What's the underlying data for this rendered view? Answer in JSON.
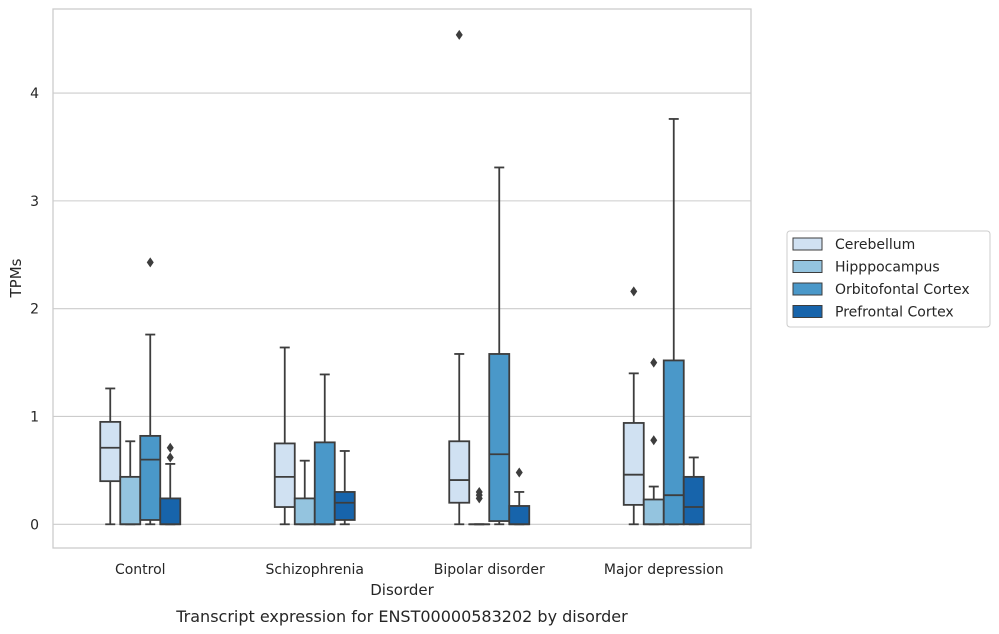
{
  "chart_data": {
    "type": "box",
    "title": "",
    "caption": "Transcript expression for ENST00000583202 by disorder",
    "xlabel": "Disorder",
    "ylabel": "TPMs",
    "ylim": [
      -0.22,
      4.78
    ],
    "yticks": [
      0,
      1,
      2,
      3,
      4
    ],
    "grid": "horizontal",
    "legend_position": "right",
    "categories": [
      "Control",
      "Schizophrenia",
      "Bipolar disorder",
      "Major depression"
    ],
    "series": [
      {
        "name": "Cerebellum",
        "color": "#d0e1f2",
        "boxes": [
          {
            "whislo": 0.0,
            "q1": 0.4,
            "med": 0.71,
            "q3": 0.95,
            "whishi": 1.26,
            "fliers": []
          },
          {
            "whislo": 0.0,
            "q1": 0.16,
            "med": 0.44,
            "q3": 0.75,
            "whishi": 1.64,
            "fliers": []
          },
          {
            "whislo": 0.0,
            "q1": 0.2,
            "med": 0.41,
            "q3": 0.77,
            "whishi": 1.58,
            "fliers": [
              4.54
            ]
          },
          {
            "whislo": 0.0,
            "q1": 0.18,
            "med": 0.46,
            "q3": 0.94,
            "whishi": 1.4,
            "fliers": [
              2.16
            ]
          }
        ]
      },
      {
        "name": "Hipppocampus",
        "color": "#94c4df",
        "boxes": [
          {
            "whislo": 0.0,
            "q1": 0.0,
            "med": 0.0,
            "q3": 0.44,
            "whishi": 0.77,
            "fliers": []
          },
          {
            "whislo": 0.0,
            "q1": 0.0,
            "med": 0.0,
            "q3": 0.24,
            "whishi": 0.59,
            "fliers": []
          },
          {
            "whislo": 0.0,
            "q1": 0.0,
            "med": 0.0,
            "q3": 0.0,
            "whishi": 0.0,
            "fliers": [
              0.24,
              0.27,
              0.3
            ]
          },
          {
            "whislo": 0.0,
            "q1": 0.0,
            "med": 0.0,
            "q3": 0.23,
            "whishi": 0.35,
            "fliers": [
              0.78,
              1.5
            ]
          }
        ]
      },
      {
        "name": "Orbitofontal Cortex",
        "color": "#4a98c9",
        "boxes": [
          {
            "whislo": 0.0,
            "q1": 0.04,
            "med": 0.6,
            "q3": 0.82,
            "whishi": 1.76,
            "fliers": [
              2.43
            ]
          },
          {
            "whislo": 0.0,
            "q1": 0.0,
            "med": 0.0,
            "q3": 0.76,
            "whishi": 1.39,
            "fliers": []
          },
          {
            "whislo": 0.0,
            "q1": 0.03,
            "med": 0.65,
            "q3": 1.58,
            "whishi": 3.31,
            "fliers": []
          },
          {
            "whislo": 0.0,
            "q1": 0.0,
            "med": 0.27,
            "q3": 1.52,
            "whishi": 3.76,
            "fliers": []
          }
        ]
      },
      {
        "name": "Prefrontal Cortex",
        "color": "#1764ab",
        "boxes": [
          {
            "whislo": 0.0,
            "q1": 0.0,
            "med": 0.0,
            "q3": 0.24,
            "whishi": 0.56,
            "fliers": [
              0.62,
              0.71
            ]
          },
          {
            "whislo": 0.0,
            "q1": 0.04,
            "med": 0.2,
            "q3": 0.3,
            "whishi": 0.68,
            "fliers": []
          },
          {
            "whislo": 0.0,
            "q1": 0.0,
            "med": 0.0,
            "q3": 0.17,
            "whishi": 0.3,
            "fliers": [
              0.48
            ]
          },
          {
            "whislo": 0.0,
            "q1": 0.0,
            "med": 0.16,
            "q3": 0.44,
            "whishi": 0.62,
            "fliers": []
          }
        ]
      }
    ]
  }
}
